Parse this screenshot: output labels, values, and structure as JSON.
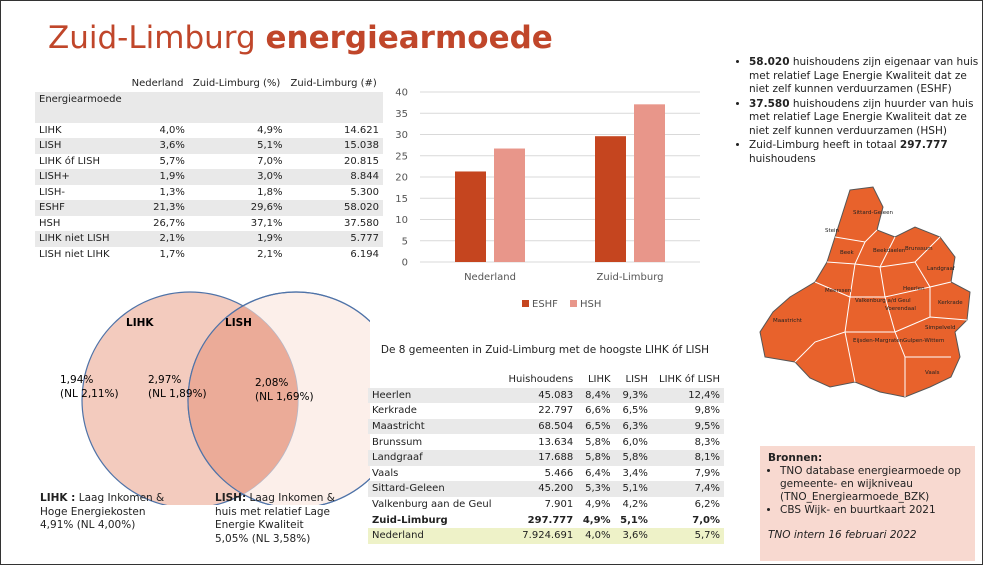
{
  "header": {
    "title_regular": "Zuid-Limburg",
    "title_bold": "energiearmoede"
  },
  "table1": {
    "columns": [
      "Nederland",
      "Zuid-Limburg (%)",
      "Zuid-Limburg (#)"
    ],
    "row_header": "Energiearmoede",
    "rows": [
      [
        "LIHK",
        "4,0%",
        "4,9%",
        "14.621"
      ],
      [
        "LISH",
        "3,6%",
        "5,1%",
        "15.038"
      ],
      [
        "LIHK óf LISH",
        "5,7%",
        "7,0%",
        "20.815"
      ],
      [
        "LISH+",
        "1,9%",
        "3,0%",
        "8.844"
      ],
      [
        "LISH-",
        "1,3%",
        "1,8%",
        "5.300"
      ],
      [
        "ESHF",
        "21,3%",
        "29,6%",
        "58.020"
      ],
      [
        "HSH",
        "26,7%",
        "37,1%",
        "37.580"
      ],
      [
        "LIHK niet LISH",
        "2,1%",
        "1,9%",
        "5.777"
      ],
      [
        "LISH niet LIHK",
        "1,7%",
        "2,1%",
        "6.194"
      ]
    ]
  },
  "chart_data": {
    "type": "bar",
    "categories": [
      "Nederland",
      "Zuid-Limburg"
    ],
    "series": [
      {
        "name": "ESHF",
        "color": "#c5451f",
        "values": [
          21.3,
          29.6
        ]
      },
      {
        "name": "HSH",
        "color": "#e8968a",
        "values": [
          26.7,
          37.1
        ]
      }
    ],
    "ylim": [
      0,
      40
    ],
    "yticks": [
      0,
      5,
      10,
      15,
      20,
      25,
      30,
      35,
      40
    ],
    "grid": true,
    "legend": "bottom"
  },
  "venn": {
    "left": {
      "title": "LIHK",
      "value": "1,94%",
      "nl": "(NL 2,11%)"
    },
    "overlap": {
      "value": "2,97%",
      "nl": "(NL 1,89%)"
    },
    "right": {
      "title": "LISH",
      "value": "2,08%",
      "nl": "(NL 1,69%)"
    },
    "left_caption": {
      "term": "LIHK :",
      "text": "Laag Inkomen & Hoge Energiekosten",
      "stat": "4,91% (NL 4,00%)"
    },
    "right_caption": {
      "term": "LISH:",
      "text": "Laag Inkomen & huis met relatief Lage Energie Kwaliteit",
      "stat": "5,05% (NL 3,58%)"
    }
  },
  "table2": {
    "title": "De 8 gemeenten in Zuid-Limburg met de hoogste LIHK óf LISH",
    "columns": [
      "Huishoudens",
      "LIHK",
      "LISH",
      "LIHK óf LISH"
    ],
    "rows": [
      [
        "Heerlen",
        "45.083",
        "8,4%",
        "9,3%",
        "12,4%"
      ],
      [
        "Kerkrade",
        "22.797",
        "6,6%",
        "6,5%",
        "9,8%"
      ],
      [
        "Maastricht",
        "68.504",
        "6,5%",
        "6,3%",
        "9,5%"
      ],
      [
        "Brunssum",
        "13.634",
        "5,8%",
        "6,0%",
        "8,3%"
      ],
      [
        "Landgraaf",
        "17.688",
        "5,8%",
        "5,8%",
        "8,1%"
      ],
      [
        "Vaals",
        "5.466",
        "6,4%",
        "3,4%",
        "7,9%"
      ],
      [
        "Sittard-Geleen",
        "45.200",
        "5,3%",
        "5,1%",
        "7,4%"
      ],
      [
        "Valkenburg aan de Geul",
        "7.901",
        "4,9%",
        "4,2%",
        "6,2%"
      ],
      [
        "Zuid-Limburg",
        "297.777",
        "4,9%",
        "5,1%",
        "7,0%"
      ],
      [
        "Nederland",
        "7.924.691",
        "4,0%",
        "3,6%",
        "5,7%"
      ]
    ]
  },
  "bullets": [
    {
      "bold": "58.020",
      "post": " huishoudens zijn eigenaar van huis met relatief Lage Energie Kwaliteit dat ze niet zelf kunnen verduurzamen (ESHF)"
    },
    {
      "bold": "37.580",
      "post": " huishoudens zijn huurder van huis met relatief Lage Energie Kwaliteit dat ze niet zelf kunnen verduurzamen (HSH)"
    },
    {
      "pre": "Zuid-Limburg heeft in totaal ",
      "bold": "297.777",
      "post": " huishoudens"
    }
  ],
  "map_labels": [
    "Sittard-Geleen",
    "Stein",
    "Beek",
    "Beekdaelen",
    "Brunssum",
    "Landgraaf",
    "Heerlen",
    "Kerkrade",
    "Meerssen",
    "Valkenburg a/d Geul",
    "Voerendaal",
    "Simpelveld",
    "Maastricht",
    "Eijsden-Margraten",
    "Gulpen-Wittem",
    "Vaals"
  ],
  "sources": {
    "title": "Bronnen:",
    "items": [
      "TNO database energiearmoede op gemeente- en wijkniveau (TNO_Energiearmoede_BZK)",
      "CBS Wijk- en buurtkaart 2021"
    ],
    "note": "TNO intern 16 februari 2022"
  }
}
